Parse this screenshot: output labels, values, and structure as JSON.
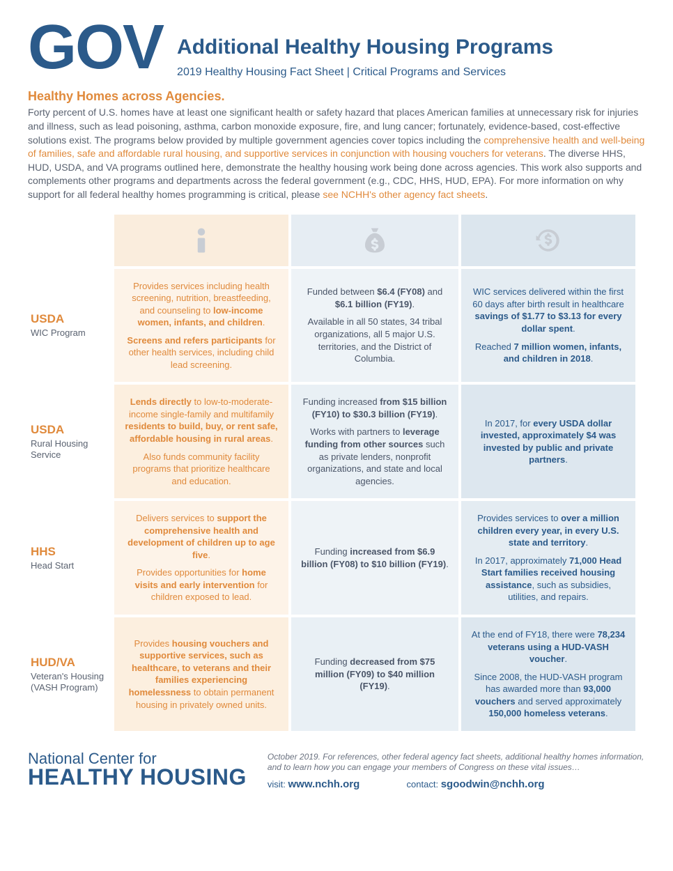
{
  "header": {
    "gov": "GOV",
    "title": "Additional Healthy Housing Programs",
    "subtitle": "2019 Healthy Housing Fact Sheet  |  Critical Programs and Services"
  },
  "section_heading": "Healthy Homes across Agencies.",
  "intro_p1": "Forty percent of U.S. homes have at least one significant health or safety hazard that places American families at unnecessary risk for injuries and illness, such as lead poisoning, asthma, carbon monoxide exposure, fire, and lung cancer; fortunately, evidence-based, cost-effective solutions exist. The programs below provided by multiple government agencies cover topics including the ",
  "intro_hl1": "comprehensive health and well-being of families, safe and affordable rural housing, and supportive services in conjunction with housing vouchers for veterans",
  "intro_p2": ". The diverse HHS, HUD, USDA, and VA programs outlined here, demonstrate the healthy housing work being done across agencies. This work also supports and complements other programs and departments across the federal government (e.g., CDC, HHS, HUD, EPA). For more information on why support for all federal healthy homes programming is critical, please ",
  "intro_hl2": "see NCHH's other agency fact sheets",
  "intro_p3": ".",
  "rows": [
    {
      "agency": "USDA",
      "program": "WIC Program",
      "col1": "<p>Provides services including health screening, nutrition, breastfeeding, and counseling to <b>low-income women, infants, and children</b>.</p><p><b>Screens and refers participants</b> for other health services, including child lead screening.</p>",
      "col2": "<p>Funded between <b>$6.4 (FY08)</b> and <b>$6.1 billion (FY19)</b>.</p><p>Available in all 50 states, 34 tribal organizations, all 5 major U.S. territories, and the District of Columbia.</p>",
      "col3": "<p>WIC services delivered within the first 60 days after birth result in healthcare <b>savings of $1.77 to $3.13 for every dollar spent</b>.</p><p>Reached <b>7 million women, infants, and children in 2018</b>.</p>"
    },
    {
      "agency": "USDA",
      "program": "Rural Housing Service",
      "col1": "<p><b>Lends directly</b> to low-to-moderate-income single-family and multifamily <b>residents to build, buy, or rent safe, affordable housing in rural areas</b>.</p><p>Also funds community facility programs that prioritize healthcare and education.</p>",
      "col2": "<p>Funding increased <b>from $15 billion (FY10) to $30.3 billion (FY19)</b>.</p><p>Works with partners to <b>leverage funding from other sources</b> such as private lenders, nonprofit organizations, and state and local agencies.</p>",
      "col3": "<p>In 2017, for <b>every USDA dollar invested, approximately $4 was invested by public and private partners</b>.</p>"
    },
    {
      "agency": "HHS",
      "program": "Head Start",
      "col1": "<p>Delivers services to <b>support the comprehensive health and development of children up to age five</b>.</p><p>Provides opportunities for <b>home visits and early intervention</b> for children exposed to lead.</p>",
      "col2": "<p>Funding <b>increased from $6.9 billion (FY08) to $10 billion (FY19)</b>.</p>",
      "col3": "<p>Provides services to <b>over a million children every year, in every U.S. state and territory</b>.</p><p>In 2017, approximately <b>71,000 Head Start families received housing assistance</b>, such as subsidies, utilities, and repairs.</p>"
    },
    {
      "agency": "HUD/VA",
      "program": "Veteran's Housing (VASH Program)",
      "col1": "<p>Provides <b>housing vouchers and supportive services, such as healthcare, to veterans and their families experiencing homelessness</b> to obtain permanent housing in privately owned units.</p>",
      "col2": "<p>Funding <b>decreased from $75 million (FY09) to $40 million (FY19)</b>.</p>",
      "col3": "<p>At the end of FY18, there were <b>78,234 veterans using a HUD-VASH voucher</b>.</p><p>Since 2008, the HUD-VASH program has awarded more than <b>93,000 vouchers</b> and served approximately <b>150,000 homeless veterans</b>.</p>"
    }
  ],
  "footer": {
    "org1": "National Center for",
    "org2": "HEALTHY HOUSING",
    "note": "October 2019. For references, other federal agency fact sheets, additional healthy homes information, and to learn how you can engage your members of Congress on these vital issues…",
    "visit_label": "visit:",
    "visit_url": "www.nchh.org",
    "contact_label": "contact:",
    "contact_email": "sgoodwin@nchh.org"
  }
}
